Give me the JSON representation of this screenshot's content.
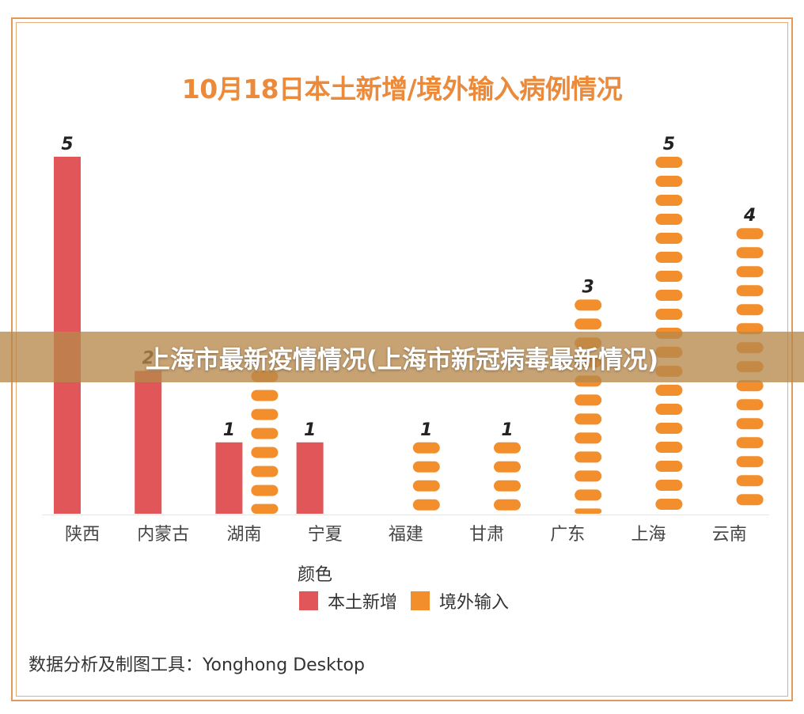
{
  "title": "10月18日本土新增/境外输入病例情况",
  "banner": "上海市最新疫情情况(上海市新冠病毒最新情况)",
  "legend": {
    "title": "颜色",
    "items": [
      {
        "label": "本土新增",
        "color": "#e15759"
      },
      {
        "label": "境外输入",
        "color": "#f28e2b"
      }
    ]
  },
  "source": "数据分析及制图工具：Yonghong Desktop",
  "colors": {
    "local": "#e15759",
    "imported": "#f28e2b",
    "title": "#ea8a3a"
  },
  "chart_data": {
    "type": "bar",
    "categories": [
      "陕西",
      "内蒙古",
      "湖南",
      "宁夏",
      "福建",
      "甘肃",
      "广东",
      "上海",
      "云南"
    ],
    "series": [
      {
        "name": "本土新增",
        "values": [
          5,
          2,
          1,
          1,
          0,
          0,
          0,
          0,
          0
        ]
      },
      {
        "name": "境外输入",
        "values": [
          0,
          0,
          2,
          0,
          1,
          1,
          3,
          5,
          4
        ]
      }
    ],
    "data_labels": [
      "5",
      "2",
      "1",
      "1",
      "1",
      "1",
      "3",
      "5",
      "4"
    ],
    "ylim": [
      0,
      5
    ],
    "grid": false,
    "legend_position": "bottom"
  }
}
